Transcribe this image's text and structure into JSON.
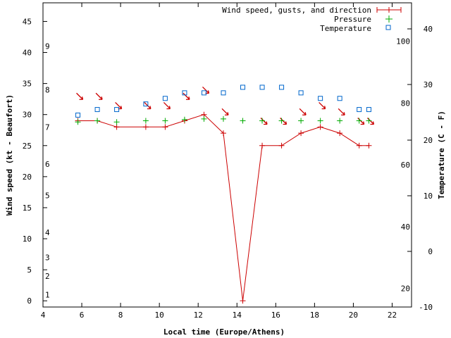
{
  "chart_data": {
    "type": "line",
    "xlabel": "Local time (Europe/Athens)",
    "ylabel": "Wind speed (kt - Beaufort)",
    "y2label": "Temperature (C - F)",
    "xlim": [
      4,
      23
    ],
    "ylim": [
      -1,
      48
    ],
    "x_ticks": [
      4,
      6,
      8,
      10,
      12,
      14,
      16,
      18,
      20,
      22
    ],
    "y_ticks": [
      0,
      5,
      10,
      15,
      20,
      25,
      30,
      35,
      40,
      45
    ],
    "beaufort_labels": [
      {
        "kt": 1,
        "label": "1"
      },
      {
        "kt": 4,
        "label": "2"
      },
      {
        "kt": 7,
        "label": "3"
      },
      {
        "kt": 11,
        "label": "4"
      },
      {
        "kt": 17,
        "label": "5"
      },
      {
        "kt": 22,
        "label": "6"
      },
      {
        "kt": 28,
        "label": "7"
      },
      {
        "kt": 34,
        "label": "8"
      },
      {
        "kt": 41,
        "label": "9"
      }
    ],
    "temp_c_ticks": [
      {
        "value": -10,
        "label": "-10"
      },
      {
        "value": 0,
        "label": "0"
      },
      {
        "value": 10,
        "label": "10"
      },
      {
        "value": 20,
        "label": "20"
      },
      {
        "value": 30,
        "label": "30"
      },
      {
        "value": 40,
        "label": "40"
      }
    ],
    "temp_f_ticks": [
      {
        "value": 20,
        "label": "20"
      },
      {
        "value": 40,
        "label": "40"
      },
      {
        "value": 60,
        "label": "60"
      },
      {
        "value": 80,
        "label": "80"
      },
      {
        "value": 100,
        "label": "100"
      }
    ],
    "legend_position": "top-right",
    "series": [
      {
        "name": "Wind speed, gusts, and direction",
        "color": "#cc0000",
        "x": [
          5.8,
          6.8,
          7.8,
          9.3,
          10.3,
          11.3,
          12.3,
          13.3,
          14.3,
          15.3,
          16.3,
          17.3,
          18.3,
          19.3,
          20.3,
          20.8
        ],
        "values": [
          29,
          29,
          28,
          28,
          28,
          29,
          30,
          27,
          0,
          25,
          25,
          27,
          28,
          27,
          25,
          25
        ],
        "direction_arrows_x": [
          5.8,
          6.8,
          7.8,
          9.3,
          10.3,
          11.3,
          12.3,
          13.3,
          15.3,
          16.3,
          17.3,
          18.3,
          19.3,
          20.3,
          20.8
        ],
        "direction_arrows_y": [
          33,
          33,
          31.5,
          31.5,
          31.5,
          33,
          34,
          30.5,
          29,
          29,
          30.5,
          31.5,
          30.5,
          29,
          29
        ]
      },
      {
        "name": "Pressure",
        "color": "#00aa00",
        "x": [
          5.8,
          6.8,
          7.8,
          9.3,
          10.3,
          11.3,
          12.3,
          13.3,
          14.3,
          15.3,
          16.3,
          17.3,
          18.3,
          19.3,
          20.3,
          20.8
        ],
        "values": [
          28.8,
          29,
          28.8,
          29,
          29,
          29.2,
          29.3,
          29.3,
          29,
          29,
          29,
          29,
          29,
          29,
          29,
          29
        ]
      },
      {
        "name": "Temperature",
        "color": "#0066cc",
        "x": [
          5.8,
          6.8,
          7.8,
          9.3,
          10.3,
          11.3,
          12.3,
          13.3,
          14.3,
          15.3,
          16.3,
          17.3,
          18.3,
          19.3,
          20.3,
          20.8
        ],
        "values": [
          24.5,
          25.5,
          25.5,
          26.5,
          27.5,
          28.5,
          28.5,
          28.5,
          29.5,
          29.5,
          29.5,
          28.5,
          27.5,
          27.5,
          25.5,
          25.5
        ]
      }
    ]
  }
}
